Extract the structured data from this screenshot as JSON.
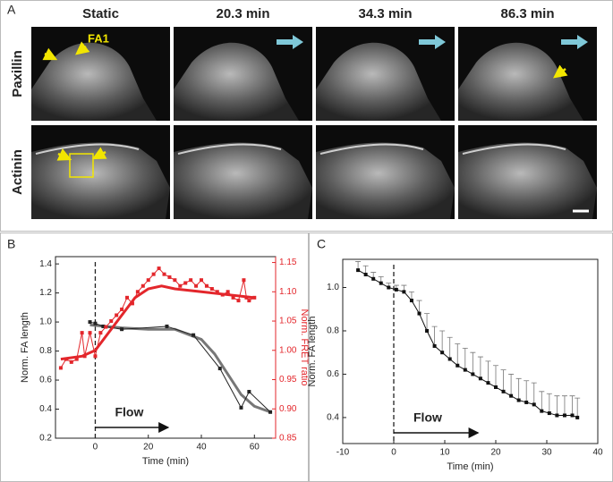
{
  "panel_a": {
    "label": "A",
    "columns": [
      "Static",
      "20.3 min",
      "34.3 min",
      "86.3 min"
    ],
    "rows": [
      "Paxillin",
      "Actinin"
    ],
    "annotation": "FA1"
  },
  "chart_data": [
    {
      "type": "line",
      "panel_label": "B",
      "xlabel": "Time (min)",
      "ylabel": "Norm. FA length",
      "y2label": "Norm. FRET ratio",
      "annotation": "Flow",
      "vline": 0,
      "xlim": [
        -15,
        68
      ],
      "xticks": [
        0,
        20,
        40,
        60
      ],
      "ylim": [
        0.2,
        1.45
      ],
      "yticks": [
        0.2,
        0.4,
        0.6,
        0.8,
        {
          "value": 1,
          "label": "1.0"
        },
        1.2,
        1.4
      ],
      "y2lim": [
        0.85,
        1.16
      ],
      "y2ticks": [
        0.85,
        {
          "value": 0.9,
          "label": "0.90"
        },
        0.95,
        {
          "value": 1,
          "label": "1.00"
        },
        1.05,
        {
          "value": 1.1,
          "label": "1.10"
        },
        1.15
      ],
      "y2color": "#e3262b",
      "series": [
        {
          "style": "fit",
          "color": "#777777",
          "x": [
            -2,
            10,
            20,
            30,
            40,
            45,
            50,
            55,
            60,
            66
          ],
          "values": [
            0.98,
            0.96,
            0.95,
            0.95,
            0.88,
            0.78,
            0.64,
            0.5,
            0.42,
            0.38
          ]
        },
        {
          "style": "points-line",
          "color": "#222222",
          "x": [
            -2,
            0,
            3,
            10,
            27,
            37,
            47,
            55,
            58,
            66
          ],
          "values": [
            1.0,
            0.99,
            0.97,
            0.95,
            0.97,
            0.91,
            0.68,
            0.41,
            0.52,
            0.38
          ]
        },
        {
          "style": "points-line",
          "axis": "y2",
          "color": "#e3262b",
          "x": [
            -13,
            -11,
            -9,
            -7,
            -5,
            -4,
            -2,
            0,
            2,
            4,
            6,
            8,
            10,
            12,
            14,
            16,
            18,
            20,
            22,
            24,
            26,
            28,
            30,
            32,
            34,
            36,
            38,
            40,
            42,
            44,
            46,
            48,
            50,
            52,
            54,
            56,
            57,
            58,
            60
          ],
          "values": [
            0.97,
            0.985,
            0.98,
            0.985,
            1.03,
            0.99,
            1.03,
            0.99,
            1.03,
            1.04,
            1.05,
            1.06,
            1.07,
            1.09,
            1.08,
            1.1,
            1.11,
            1.12,
            1.13,
            1.14,
            1.13,
            1.125,
            1.12,
            1.11,
            1.115,
            1.12,
            1.11,
            1.12,
            1.11,
            1.105,
            1.1,
            1.095,
            1.1,
            1.09,
            1.085,
            1.12,
            1.09,
            1.085,
            1.09
          ]
        },
        {
          "style": "fit",
          "axis": "y2",
          "color": "#e3262b",
          "x": [
            -13,
            -5,
            0,
            5,
            10,
            15,
            20,
            25,
            30,
            40,
            50,
            60
          ],
          "values": [
            0.985,
            0.99,
            1.0,
            1.03,
            1.06,
            1.09,
            1.105,
            1.11,
            1.105,
            1.1,
            1.095,
            1.09
          ]
        }
      ]
    },
    {
      "type": "errorbar",
      "panel_label": "C",
      "xlabel": "Time (min)",
      "ylabel": "Norm. FA length",
      "annotation": "Flow",
      "vline": 0,
      "xlim": [
        -10,
        40
      ],
      "xticks": [
        -10,
        0,
        10,
        20,
        30,
        40
      ],
      "ylim": [
        0.28,
        1.13
      ],
      "yticks": [
        0.4,
        0.6,
        0.8,
        {
          "value": 1,
          "label": "1.0"
        }
      ],
      "series": [
        {
          "style": "points-line",
          "color": "#111111",
          "x": [
            -7,
            -5.5,
            -4,
            -2.5,
            -1,
            0.5,
            2,
            3.5,
            5,
            6.5,
            8,
            9.5,
            11,
            12.5,
            14,
            15.5,
            17,
            18.5,
            20,
            21.5,
            23,
            24.5,
            26,
            27.5,
            29,
            30.5,
            32,
            33.5,
            35,
            36
          ],
          "values": [
            1.08,
            1.06,
            1.04,
            1.02,
            1.0,
            0.99,
            0.98,
            0.94,
            0.88,
            0.8,
            0.73,
            0.7,
            0.67,
            0.64,
            0.62,
            0.6,
            0.58,
            0.56,
            0.54,
            0.52,
            0.5,
            0.48,
            0.47,
            0.46,
            0.43,
            0.42,
            0.41,
            0.41,
            0.41,
            0.4
          ],
          "errors": [
            0.04,
            0.04,
            0.03,
            0.03,
            0.02,
            0.02,
            0.03,
            0.04,
            0.06,
            0.08,
            0.09,
            0.1,
            0.1,
            0.1,
            0.1,
            0.1,
            0.1,
            0.1,
            0.1,
            0.1,
            0.1,
            0.1,
            0.1,
            0.1,
            0.09,
            0.09,
            0.09,
            0.09,
            0.09,
            0.09
          ]
        }
      ]
    }
  ]
}
